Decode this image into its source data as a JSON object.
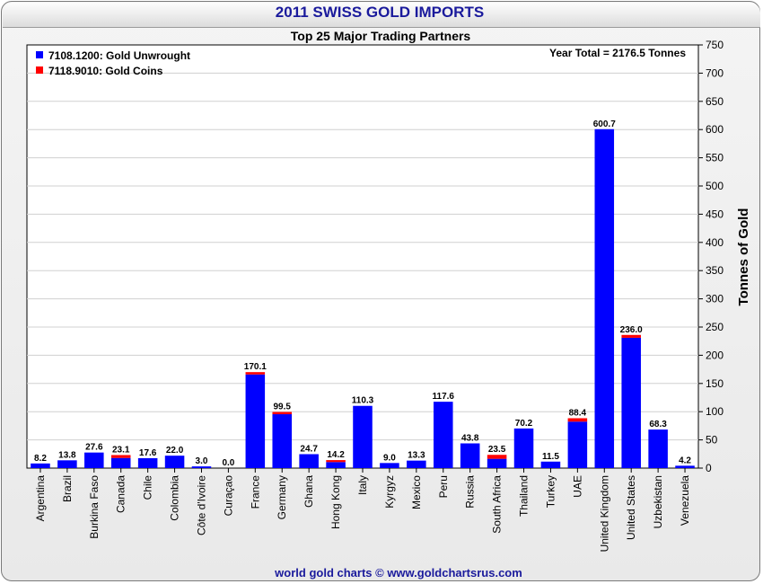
{
  "title": "2011 SWISS GOLD IMPORTS",
  "footer": "world gold charts © www.goldchartsrus.com",
  "colors": {
    "unwrought": "#0000ff",
    "coins": "#ff0000",
    "title": "#1a1a9c",
    "footer": "#1a1a9c"
  },
  "chart_data": {
    "type": "bar",
    "stacked": true,
    "title": "2011 SWISS GOLD IMPORTS",
    "subtitle": "Top 25 Major Trading Partners",
    "annotation": "Year Total = 2176.5 Tonnes",
    "xlabel": "",
    "ylabel": "Tonnes of Gold",
    "ylim": [
      0,
      750
    ],
    "yticks": [
      0,
      50,
      100,
      150,
      200,
      250,
      300,
      350,
      400,
      450,
      500,
      550,
      600,
      650,
      700,
      750
    ],
    "y_axis_side": "right",
    "grid": "horizontal",
    "legend_position": "top-left",
    "categories": [
      "Argentina",
      "Brazil",
      "Burkina Faso",
      "Canada",
      "Chile",
      "Colombia",
      "Côte d'Ivoire",
      "Curaçao",
      "France",
      "Germany",
      "Ghana",
      "Hong Kong",
      "Italy",
      "Kyrgyz",
      "Mexico",
      "Peru",
      "Russia",
      "South Africa",
      "Thailand",
      "Turkey",
      "UAE",
      "United Kingdom",
      "United States",
      "Uzbekistan",
      "Venezuela"
    ],
    "series": [
      {
        "name": "7108.1200: Gold Unwrought",
        "color": "#0000ff",
        "values": [
          8.2,
          13.8,
          27.6,
          18.0,
          17.6,
          22.0,
          3.0,
          0.0,
          166.0,
          95.5,
          24.7,
          10.7,
          110.3,
          9.0,
          13.3,
          117.6,
          43.8,
          16.5,
          70.2,
          11.5,
          82.4,
          600.7,
          231.0,
          68.3,
          4.2
        ]
      },
      {
        "name": "7118.9010: Gold Coins",
        "color": "#ff0000",
        "values": [
          0.0,
          0.0,
          0.0,
          5.1,
          0.0,
          0.0,
          0.0,
          0.0,
          4.1,
          4.0,
          0.0,
          3.5,
          0.0,
          0.0,
          0.0,
          0.0,
          0.0,
          7.0,
          0.0,
          0.0,
          6.0,
          0.0,
          5.0,
          0.0,
          0.0
        ]
      }
    ],
    "data_labels": [
      "8.2",
      "13.8",
      "27.6",
      "23.1",
      "17.6",
      "22.0",
      "3.0",
      "0.0",
      "170.1",
      "99.5",
      "24.7",
      "14.2",
      "110.3",
      "9.0",
      "13.3",
      "117.6",
      "43.8",
      "23.5",
      "70.2",
      "11.5",
      "88.4",
      "600.7",
      "236.0",
      "68.3",
      "4.2"
    ]
  }
}
